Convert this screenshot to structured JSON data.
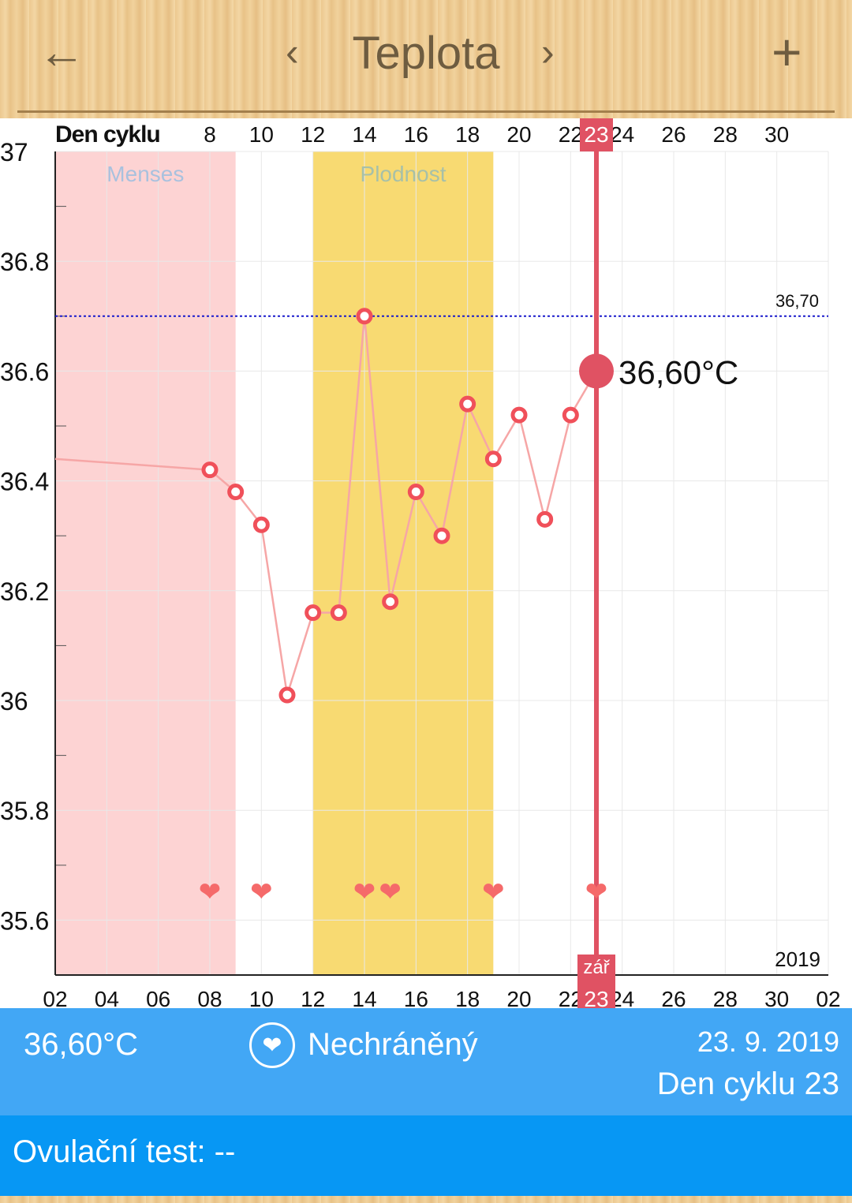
{
  "header": {
    "title": "Teplota",
    "back_icon": "arrow-left-icon",
    "prev_icon": "chevron-left-icon",
    "next_icon": "chevron-right-icon",
    "add_icon": "plus-icon"
  },
  "chart_data": {
    "type": "line",
    "top_axis_label": "Den cyklu",
    "top_ticks": [
      "8",
      "10",
      "12",
      "14",
      "16",
      "18",
      "20",
      "22",
      "24",
      "26",
      "28",
      "30"
    ],
    "top_tick_days": [
      8,
      10,
      12,
      14,
      16,
      18,
      20,
      22,
      24,
      26,
      28,
      30
    ],
    "bottom_ticks": [
      "02",
      "04",
      "06",
      "08",
      "10",
      "12",
      "14",
      "16",
      "18",
      "20",
      "22",
      "24",
      "26",
      "28",
      "30",
      "02"
    ],
    "bottom_tick_days": [
      2,
      4,
      6,
      8,
      10,
      12,
      14,
      16,
      18,
      20,
      22,
      24,
      26,
      28,
      30,
      32
    ],
    "y_ticks": [
      "37",
      "36.8",
      "36.6",
      "36.4",
      "36.2",
      "36",
      "35.8",
      "35.6"
    ],
    "y_tick_values": [
      37,
      36.8,
      36.6,
      36.4,
      36.2,
      36,
      35.8,
      35.6
    ],
    "ylim": [
      35.5,
      37
    ],
    "xlim": [
      2,
      32
    ],
    "year_label": "2019",
    "month_label": "zář",
    "selected_day": 23,
    "selected_day_label": "23",
    "selected_value_label": "36,60°C",
    "bands": [
      {
        "name": "Menses",
        "from": 2,
        "to": 9,
        "color": "#fdd3d3",
        "label_color": "#a9c1de"
      },
      {
        "name": "Plodnost",
        "from": 12,
        "to": 19,
        "color": "#f8da72",
        "label_color": "#a7c0a8"
      }
    ],
    "reference_line": {
      "value": 36.7,
      "label": "36,70",
      "color": "#1a1acc"
    },
    "line_start": {
      "x": 2,
      "y": 36.44
    },
    "series": [
      {
        "x": [
          8,
          9,
          10,
          11,
          12,
          13,
          14,
          15,
          16,
          17,
          18,
          19,
          20,
          21,
          22,
          23
        ],
        "y": [
          36.42,
          36.38,
          36.32,
          36.01,
          36.16,
          36.16,
          36.7,
          36.18,
          36.38,
          36.3,
          36.54,
          36.44,
          36.52,
          36.33,
          36.52,
          36.6
        ]
      }
    ],
    "intercourse_days": [
      8,
      10,
      14,
      15,
      19,
      23
    ],
    "colors": {
      "line": "#f6a6a6",
      "marker": "#f0505a",
      "selected": "#e05263",
      "grid": "#e8e8e8"
    }
  },
  "info": {
    "temperature": "36,60°C",
    "status_icon": "heart-circle-icon",
    "status": "Nechráněný",
    "date": "23. 9. 2019",
    "cycle_day": "Den cyklu 23"
  },
  "ovulation": {
    "label": "Ovulační test: --"
  }
}
